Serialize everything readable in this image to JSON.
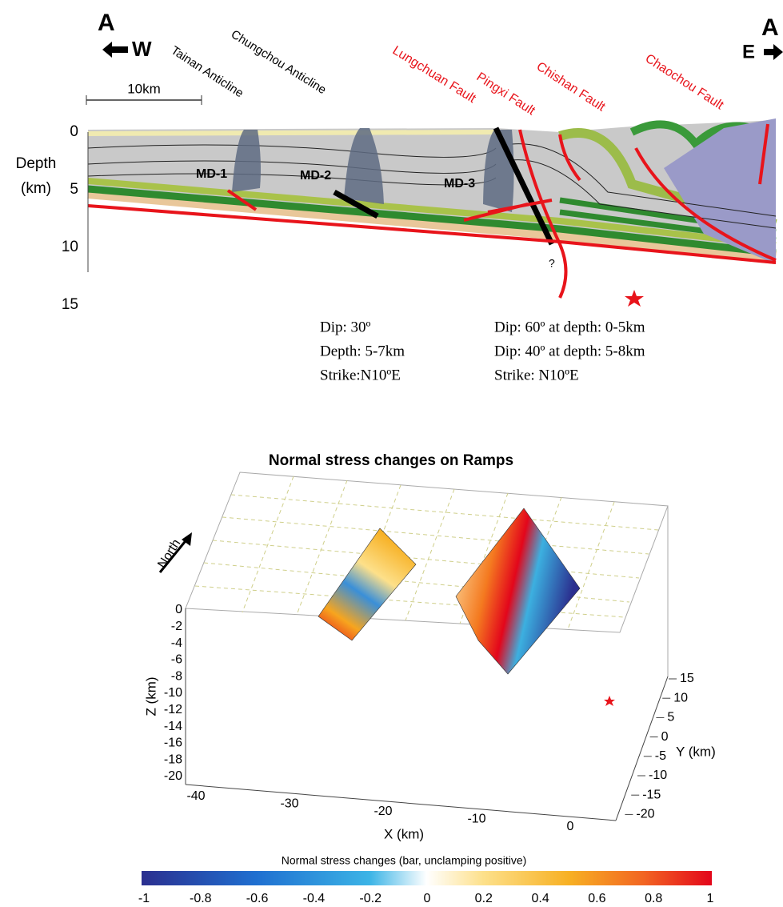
{
  "section": {
    "a_left": "A",
    "w": "W",
    "a_right": "A",
    "e": "E",
    "scale_bar": "10km",
    "depth_title": "Depth",
    "depth_unit": "(km)",
    "depth_ticks": [
      0,
      5,
      10,
      15
    ],
    "anticlines": [
      "Tainan Anticline",
      "Chungchou Anticline"
    ],
    "faults": [
      "Lungchuan Fault",
      "Pingxi Fault",
      "Chishan Fault",
      "Chaochou Fault"
    ],
    "diapirs": [
      "MD-1",
      "MD-2",
      "MD-3"
    ],
    "question": "?"
  },
  "annotations": {
    "left": [
      "Dip: 30º",
      "Depth: 5-7km",
      "Strike:N10ºE"
    ],
    "right": [
      "Dip: 60º at depth: 0-5km",
      "Dip: 40º at depth: 5-8km",
      "Strike: N10ºE"
    ]
  },
  "stress_plot": {
    "title": "Normal stress changes on Ramps",
    "north": "North",
    "x_label": "X (km)",
    "x_ticks": [
      -40,
      -30,
      -20,
      -10,
      0
    ],
    "y_label": "Y (km)",
    "y_ticks": [
      15,
      10,
      5,
      0,
      -5,
      -10,
      -15,
      -20
    ],
    "z_label": "Z (km)",
    "z_ticks": [
      0,
      -2,
      -4,
      -6,
      -8,
      -10,
      -12,
      -14,
      -16,
      -18,
      -20
    ],
    "colorbar_label": "Normal stress changes (bar, unclamping positive)",
    "colorbar_ticks": [
      -1,
      -0.8,
      -0.6,
      -0.4,
      -0.2,
      0,
      0.2,
      0.4,
      0.6,
      0.8,
      1
    ]
  }
}
